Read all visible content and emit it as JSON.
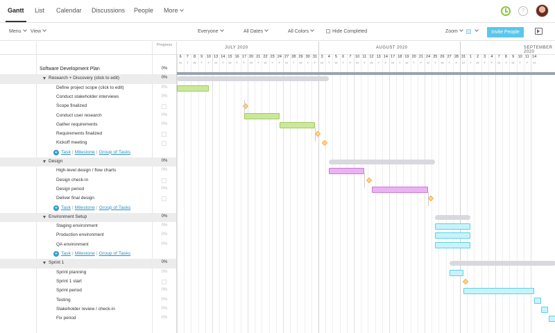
{
  "nav": {
    "tabs": [
      {
        "label": "Gantt"
      },
      {
        "label": "List"
      },
      {
        "label": "Calendar"
      },
      {
        "label": "Discussions"
      },
      {
        "label": "People"
      },
      {
        "label": "More"
      }
    ],
    "help_label": "?"
  },
  "toolbar": {
    "menu": "Menu",
    "view": "View",
    "everyone": "Everyone",
    "all_dates": "All Dates",
    "all_colors": "All Colors",
    "hide_completed": "Hide Completed",
    "zoom": "Zoom",
    "invite": "Invite People"
  },
  "left": {
    "progress_header": "Progress",
    "plan": {
      "label": "Software Development Plan",
      "progress": "0%"
    },
    "add_links": {
      "plus": "+",
      "task": "Task",
      "milestone": "Milestone",
      "group": "Group of Tasks",
      "sep": "|"
    },
    "rows": [
      {
        "kind": "group",
        "label": "Research + Discovery (click to edit)",
        "progress": "0%"
      },
      {
        "kind": "task",
        "label": "Define project scope (click to edit)",
        "progress": "0%"
      },
      {
        "kind": "task",
        "label": "Conduct stakeholder interviews",
        "progress": "0%"
      },
      {
        "kind": "milestone",
        "label": "Scope finalized",
        "progress": ""
      },
      {
        "kind": "task",
        "label": "Conduct user research",
        "progress": "0%"
      },
      {
        "kind": "task",
        "label": "Gather requirements",
        "progress": "0%"
      },
      {
        "kind": "milestone",
        "label": "Requirements finalized",
        "progress": ""
      },
      {
        "kind": "milestone",
        "label": "Kickoff meeting",
        "progress": ""
      },
      {
        "kind": "add"
      },
      {
        "kind": "group",
        "label": "Design",
        "progress": "0%"
      },
      {
        "kind": "task",
        "label": "High-level design / flow charts",
        "progress": "0%"
      },
      {
        "kind": "milestone",
        "label": "Design check-in",
        "progress": ""
      },
      {
        "kind": "task",
        "label": "Design period",
        "progress": "0%"
      },
      {
        "kind": "milestone",
        "label": "Deliver final design",
        "progress": ""
      },
      {
        "kind": "add"
      },
      {
        "kind": "group",
        "label": "Environment Setup",
        "progress": "0%"
      },
      {
        "kind": "task",
        "label": "Staging environment",
        "progress": "0%"
      },
      {
        "kind": "task",
        "label": "Production environment",
        "progress": "0%"
      },
      {
        "kind": "task",
        "label": "QA environment",
        "progress": "0%"
      },
      {
        "kind": "add"
      },
      {
        "kind": "group",
        "label": "Sprint 1",
        "progress": "0%"
      },
      {
        "kind": "task",
        "label": "Sprint planning",
        "progress": "0%"
      },
      {
        "kind": "milestone",
        "label": "Sprint 1 start",
        "progress": ""
      },
      {
        "kind": "task",
        "label": "Sprint period",
        "progress": "0%"
      },
      {
        "kind": "task",
        "label": "Testing",
        "progress": "0%"
      },
      {
        "kind": "task",
        "label": "Stakeholder review / check-in",
        "progress": "0%"
      },
      {
        "kind": "task",
        "label": "Fix period",
        "progress": "0%"
      }
    ]
  },
  "timeline": {
    "months": [
      {
        "label": "JULY 2020"
      },
      {
        "label": "AUGUST 2020"
      },
      {
        "label": "SEPTEMBER 2020"
      }
    ],
    "days": [
      "6",
      "7",
      "8",
      "9",
      "10",
      "13",
      "14",
      "15",
      "16",
      "17",
      "20",
      "21",
      "22",
      "23",
      "24",
      "27",
      "28",
      "29",
      "30",
      "31",
      "3",
      "4",
      "5",
      "6",
      "7",
      "10",
      "11",
      "12",
      "13",
      "14",
      "17",
      "18",
      "19",
      "20",
      "21",
      "24",
      "25",
      "26",
      "27",
      "28",
      "31",
      "1",
      "2",
      "3",
      "4",
      "7",
      "8",
      "9",
      "10",
      "11",
      "14"
    ],
    "dows": [
      "M",
      "T",
      "W",
      "T",
      "F",
      "M",
      "T",
      "W",
      "T",
      "F",
      "M",
      "T",
      "W",
      "T",
      "F",
      "M",
      "T",
      "W",
      "T",
      "F",
      "M",
      "T",
      "W",
      "T",
      "F",
      "M",
      "T",
      "W",
      "T",
      "F",
      "M",
      "T",
      "W",
      "T",
      "F",
      "M",
      "T",
      "W",
      "T",
      "F",
      "M",
      "T",
      "W",
      "T",
      "F",
      "M",
      "T",
      "W",
      "T",
      "F",
      "M"
    ]
  },
  "colors": {
    "accent": "#5bc6ed",
    "research": "#cbe89a",
    "design": "#ecb2f4",
    "environment": "#c8f3fb",
    "milestone": "#ffd28a",
    "group": "#d8d8de",
    "link": "#2b8fc2"
  }
}
